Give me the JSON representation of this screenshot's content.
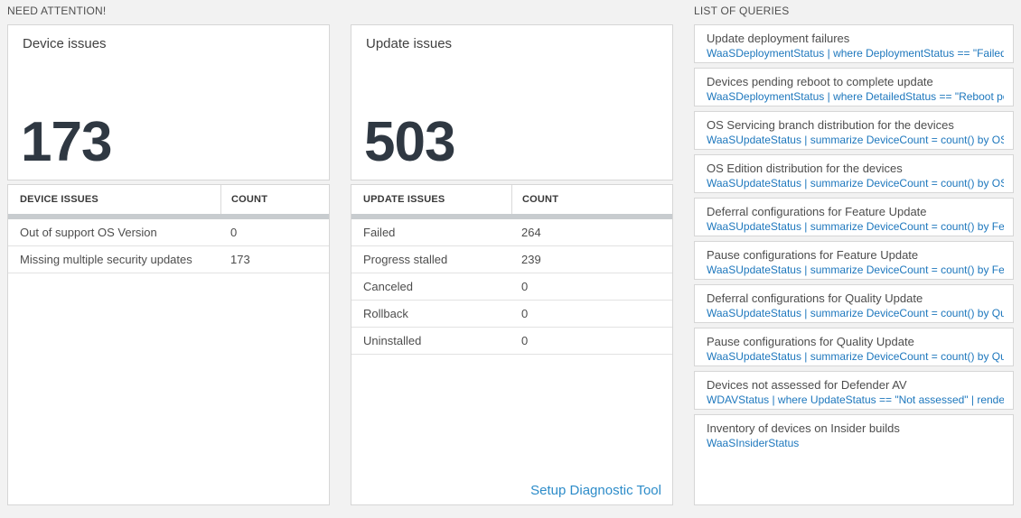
{
  "colors": {
    "link_blue": "#1d77bd",
    "setup_link_blue": "#2d8cc9",
    "big_number": "#2f3842",
    "page_background": "#f2f2f2",
    "header_bar_gray": "#c8cccf"
  },
  "need_attention": {
    "label": "NEED ATTENTION!",
    "device_card": {
      "title": "Device issues",
      "count": "173",
      "table": {
        "headers": [
          "DEVICE ISSUES",
          "COUNT"
        ],
        "rows": [
          {
            "label": "Out of support OS Version",
            "count": "0"
          },
          {
            "label": "Missing multiple security updates",
            "count": "173"
          }
        ]
      }
    },
    "update_card": {
      "title": "Update issues",
      "count": "503",
      "table": {
        "headers": [
          "UPDATE ISSUES",
          "COUNT"
        ],
        "rows": [
          {
            "label": "Failed",
            "count": "264"
          },
          {
            "label": "Progress stalled",
            "count": "239"
          },
          {
            "label": "Canceled",
            "count": "0"
          },
          {
            "label": "Rollback",
            "count": "0"
          },
          {
            "label": "Uninstalled",
            "count": "0"
          }
        ]
      },
      "footer_link": "Setup Diagnostic Tool"
    }
  },
  "queries": {
    "label": "LIST OF QUERIES",
    "items": [
      {
        "title": "Update deployment failures",
        "query": "WaaSDeploymentStatus | where DeploymentStatus == \"Failed\" |..."
      },
      {
        "title": "Devices pending reboot to complete update",
        "query": "WaaSDeploymentStatus | where DetailedStatus == \"Reboot pend..."
      },
      {
        "title": "OS Servicing branch distribution for the devices",
        "query": "WaaSUpdateStatus | summarize DeviceCount = count() by OSSer..."
      },
      {
        "title": "OS Edition distribution for the devices",
        "query": "WaaSUpdateStatus | summarize DeviceCount = count() by OSEdit..."
      },
      {
        "title": "Deferral configurations for Feature Update",
        "query": "WaaSUpdateStatus | summarize DeviceCount = count() by Featur..."
      },
      {
        "title": "Pause configurations for Feature Update",
        "query": "WaaSUpdateStatus | summarize DeviceCount = count() by Featur..."
      },
      {
        "title": "Deferral configurations for Quality Update",
        "query": "WaaSUpdateStatus | summarize DeviceCount = count() by Qualit..."
      },
      {
        "title": "Pause configurations for Quality Update",
        "query": "WaaSUpdateStatus | summarize DeviceCount = count() by Qualit..."
      },
      {
        "title": "Devices not assessed for Defender AV",
        "query": "WDAVStatus | where UpdateStatus == \"Not assessed\" | render ta..."
      },
      {
        "title": "Inventory of devices on Insider builds",
        "query": "WaaSInsiderStatus"
      }
    ]
  }
}
